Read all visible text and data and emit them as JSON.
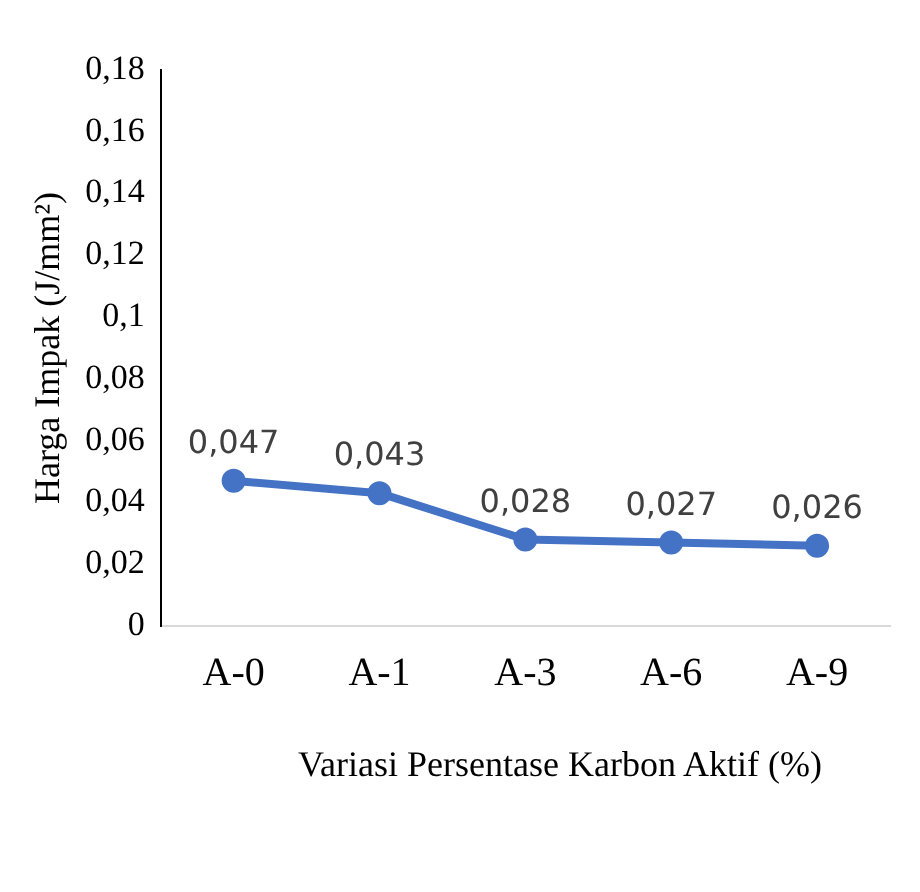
{
  "chart_data": {
    "type": "line",
    "xlabel": "Variasi Persentase Karbon Aktif (%)",
    "ylabel": "Harga Impak (J/mm²)",
    "categories": [
      "A-0",
      "A-1",
      "A-3",
      "A-6",
      "A-9"
    ],
    "series": [
      {
        "color": "#4472c4",
        "values": [
          0.047,
          0.043,
          0.028,
          0.027,
          0.026
        ],
        "value_labels": [
          "0,047",
          "0,043",
          "0,028",
          "0,027",
          "0,026"
        ]
      }
    ],
    "ylim": [
      0,
      0.18
    ],
    "yticks": [
      {
        "value": 0,
        "label": "0"
      },
      {
        "value": 0.02,
        "label": "0,02"
      },
      {
        "value": 0.04,
        "label": "0,04"
      },
      {
        "value": 0.06,
        "label": "0,06"
      },
      {
        "value": 0.08,
        "label": "0,08"
      },
      {
        "value": 0.1,
        "label": "0,1"
      },
      {
        "value": 0.12,
        "label": "0,12"
      },
      {
        "value": 0.14,
        "label": "0,14"
      },
      {
        "value": 0.16,
        "label": "0,16"
      },
      {
        "value": 0.18,
        "label": "0,18"
      }
    ],
    "grid": false,
    "legend": false,
    "marker": "circle",
    "line_style": "solid"
  }
}
